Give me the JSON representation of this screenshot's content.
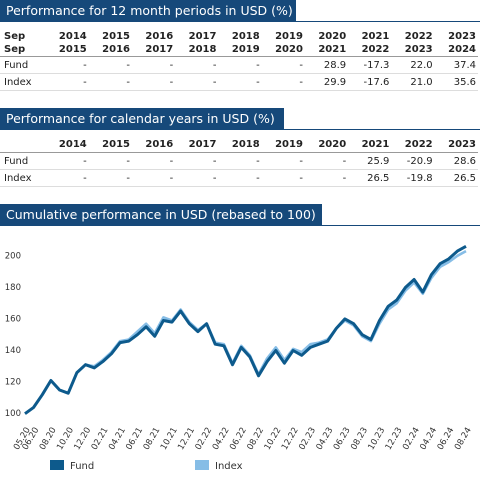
{
  "tables": [
    {
      "title": "Performance for 12 month periods in USD (%)",
      "header": [
        [
          "Sep",
          "Sep"
        ],
        [
          "2014",
          "2015"
        ],
        [
          "2015",
          "2016"
        ],
        [
          "2016",
          "2017"
        ],
        [
          "2017",
          "2018"
        ],
        [
          "2018",
          "2019"
        ],
        [
          "2019",
          "2020"
        ],
        [
          "2020",
          "2021"
        ],
        [
          "2021",
          "2022"
        ],
        [
          "2022",
          "2023"
        ],
        [
          "2023",
          "2024"
        ]
      ],
      "rows": [
        [
          "Fund",
          "-",
          "-",
          "-",
          "-",
          "-",
          "-",
          "28.9",
          "-17.3",
          "22.0",
          "37.4"
        ],
        [
          "Index",
          "-",
          "-",
          "-",
          "-",
          "-",
          "-",
          "29.9",
          "-17.6",
          "21.0",
          "35.6"
        ]
      ]
    },
    {
      "title": "Performance for calendar years in USD (%)",
      "header": [
        [
          ""
        ],
        [
          "2014"
        ],
        [
          "2015"
        ],
        [
          "2016"
        ],
        [
          "2017"
        ],
        [
          "2018"
        ],
        [
          "2019"
        ],
        [
          "2020"
        ],
        [
          "2021"
        ],
        [
          "2022"
        ],
        [
          "2023"
        ]
      ],
      "rows": [
        [
          "Fund",
          "-",
          "-",
          "-",
          "-",
          "-",
          "-",
          "-",
          "25.9",
          "-20.9",
          "28.6"
        ],
        [
          "Index",
          "-",
          "-",
          "-",
          "-",
          "-",
          "-",
          "-",
          "26.5",
          "-19.8",
          "26.5"
        ]
      ]
    }
  ],
  "chart_data": {
    "type": "line",
    "title": "Cumulative performance in USD (rebased to 100)",
    "categories": [
      "05.20",
      "06.20",
      null,
      "08.20",
      null,
      "10.20",
      null,
      "12.20",
      null,
      "02.21",
      null,
      "04.21",
      null,
      "06.21",
      null,
      "08.21",
      null,
      "10.21",
      null,
      "12.21",
      null,
      "02.22",
      null,
      "04.22",
      null,
      "06.22",
      null,
      "08.22",
      null,
      "10.22",
      null,
      "12.22",
      null,
      "02.23",
      null,
      "04.23",
      null,
      "06.23",
      null,
      "08.23",
      null,
      "10.23",
      null,
      "12.23",
      null,
      "02.24",
      null,
      "04.24",
      null,
      "06.24",
      null,
      "08.24"
    ],
    "series": [
      {
        "name": "Fund",
        "color": "#0d5a8c",
        "values": [
          100,
          104,
          112,
          121,
          115,
          113,
          126,
          131,
          129,
          133,
          138,
          145,
          146,
          150,
          155,
          149,
          159,
          158,
          165,
          157,
          152,
          157,
          144,
          143,
          131,
          142,
          136,
          124,
          133,
          140,
          132,
          140,
          137,
          142,
          144,
          146,
          154,
          160,
          157,
          150,
          147,
          159,
          168,
          172,
          180,
          185,
          177,
          188,
          195,
          198,
          203,
          206
        ]
      },
      {
        "name": "Index",
        "color": "#86bde6",
        "values": [
          100,
          104,
          112,
          121,
          115,
          113,
          126,
          131,
          130,
          134,
          139,
          146,
          147,
          152,
          157,
          151,
          161,
          159,
          166,
          158,
          153,
          157,
          145,
          144,
          132,
          143,
          137,
          125,
          135,
          142,
          134,
          141,
          139,
          144,
          145,
          147,
          154,
          159,
          156,
          149,
          146,
          157,
          166,
          170,
          178,
          183,
          176,
          186,
          193,
          196,
          200,
          203
        ]
      }
    ],
    "ylim": [
      96,
      210
    ],
    "yticks": [
      100,
      120,
      140,
      160,
      180,
      200
    ],
    "grid": false
  }
}
